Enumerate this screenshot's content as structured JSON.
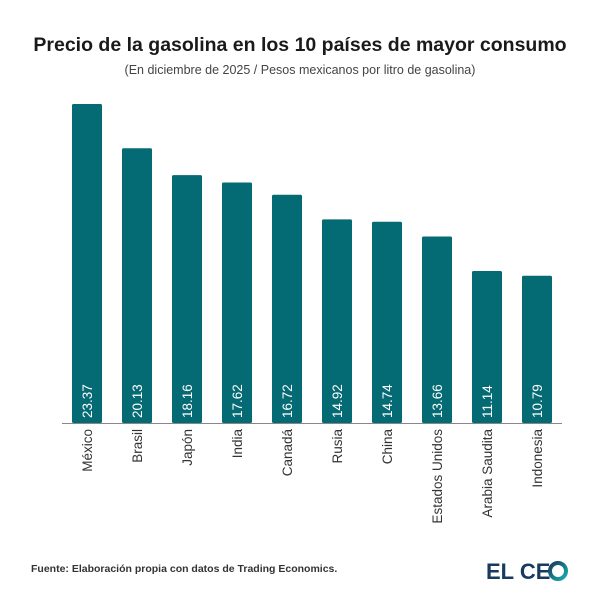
{
  "title": "Precio de la gasolina en los 10 países de mayor consumo",
  "subtitle": "(En diciembre de 2025 / Pesos mexicanos por litro de gasolina)",
  "source": "Fuente: Elaboración propia con datos de Trading Economics.",
  "logo": {
    "text": "EL CEO",
    "colors": {
      "primary": "#173a5e",
      "accent": "#0a8f9a"
    }
  },
  "chart_data": {
    "type": "bar",
    "categories": [
      "México",
      "Brasil",
      "Japón",
      "India",
      "Canadá",
      "Rusia",
      "China",
      "Estados Unidos",
      "Arabia Saudita",
      "Indonesia"
    ],
    "values": [
      23.37,
      20.13,
      18.16,
      17.62,
      16.72,
      14.92,
      14.74,
      13.66,
      11.14,
      10.79
    ],
    "value_labels": [
      "23.37",
      "20.13",
      "18.16",
      "17.62",
      "16.72",
      "14.92",
      "14.74",
      "13.66",
      "11.14",
      "10.79"
    ],
    "ylim": [
      0,
      25
    ],
    "grid": false,
    "bar_color": "#046a73",
    "label_color": "#ffffff"
  }
}
